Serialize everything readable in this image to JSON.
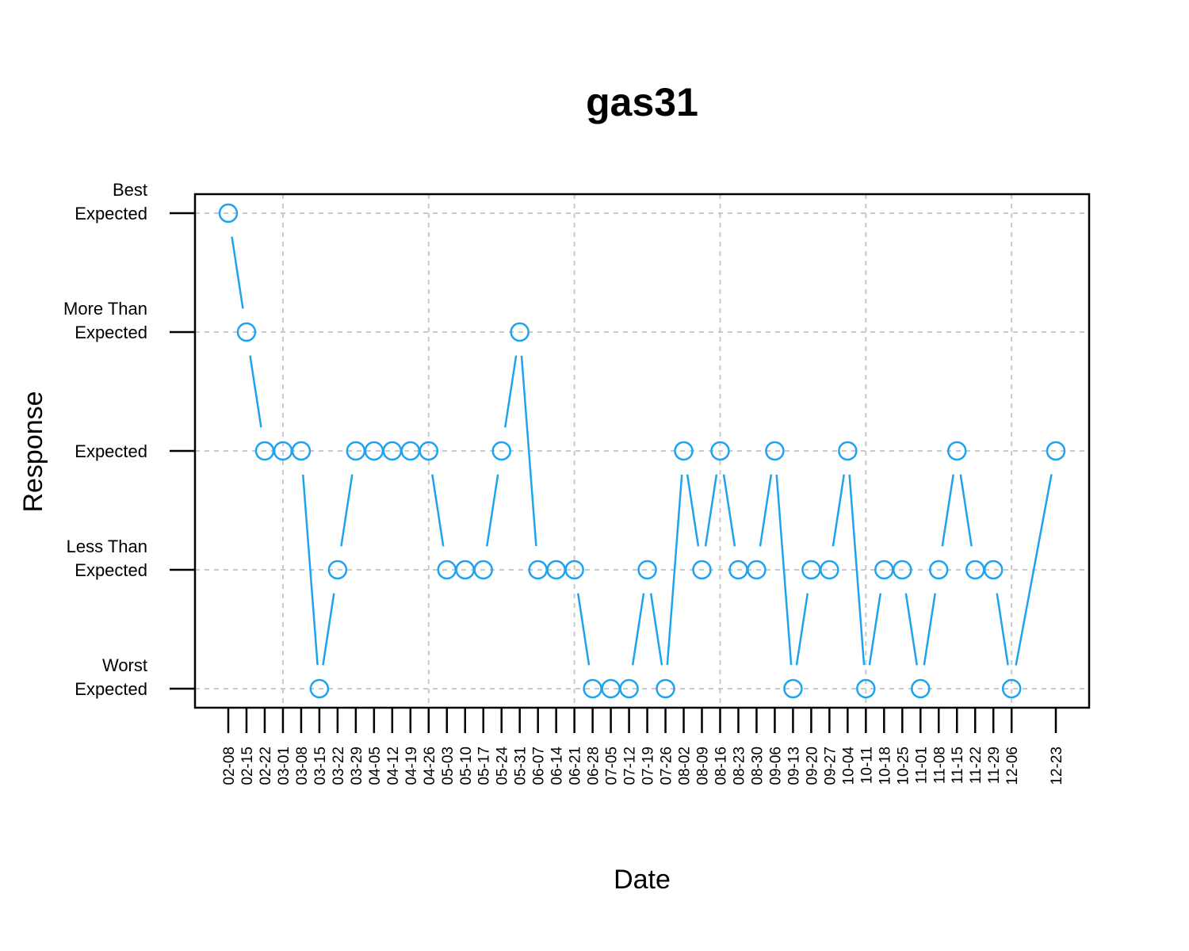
{
  "chart_data": {
    "type": "line",
    "title": "gas31",
    "xlabel": "Date",
    "ylabel": "Response",
    "y_levels": [
      [
        "Worst",
        "Expected"
      ],
      [
        "Less Than",
        "Expected"
      ],
      [
        "Expected"
      ],
      [
        "More Than",
        "Expected"
      ],
      [
        "Best",
        "Expected"
      ]
    ],
    "ylim": [
      0.84,
      5.16
    ],
    "grid": true,
    "markers": "open-circle",
    "colors": {
      "series": "#1fa3ee",
      "grid": "#c8c8c8",
      "axis": "#000000"
    },
    "x": [
      "2018-02-08",
      "2018-02-15",
      "2018-02-22",
      "2018-03-01",
      "2018-03-08",
      "2018-03-15",
      "2018-03-22",
      "2018-03-29",
      "2018-04-05",
      "2018-04-12",
      "2018-04-19",
      "2018-04-26",
      "2018-05-03",
      "2018-05-10",
      "2018-05-17",
      "2018-05-24",
      "2018-05-31",
      "2018-06-07",
      "2018-06-14",
      "2018-06-21",
      "2018-06-28",
      "2018-07-05",
      "2018-07-12",
      "2018-07-19",
      "2018-07-26",
      "2018-08-02",
      "2018-08-09",
      "2018-08-16",
      "2018-08-23",
      "2018-08-30",
      "2018-09-06",
      "2018-09-13",
      "2018-09-20",
      "2018-09-27",
      "2018-10-04",
      "2018-10-11",
      "2018-10-18",
      "2018-10-25",
      "2018-11-01",
      "2018-11-08",
      "2018-11-15",
      "2018-11-22",
      "2018-11-29",
      "2018-12-06",
      "2018-12-23"
    ],
    "tick_labels": [
      "02-08",
      "02-15",
      "02-22",
      "03-01",
      "03-08",
      "03-15",
      "03-22",
      "03-29",
      "04-05",
      "04-12",
      "04-19",
      "04-26",
      "05-03",
      "05-10",
      "05-17",
      "05-24",
      "05-31",
      "06-07",
      "06-14",
      "06-21",
      "06-28",
      "07-05",
      "07-12",
      "07-19",
      "07-26",
      "08-02",
      "08-09",
      "08-16",
      "08-23",
      "08-30",
      "09-06",
      "09-13",
      "09-20",
      "09-27",
      "10-04",
      "10-11",
      "10-18",
      "10-25",
      "11-01",
      "11-08",
      "11-15",
      "11-22",
      "11-29",
      "12-06",
      "12-23"
    ],
    "series": [
      {
        "values": [
          5,
          4,
          3,
          3,
          3,
          1,
          2,
          3,
          3,
          3,
          3,
          3,
          2,
          2,
          2,
          3,
          4,
          2,
          2,
          2,
          1,
          1,
          1,
          2,
          1,
          3,
          2,
          3,
          2,
          2,
          3,
          1,
          2,
          2,
          3,
          1,
          2,
          2,
          1,
          2,
          3,
          2,
          2,
          1,
          3
        ]
      }
    ],
    "vgrid_dates": [
      "2018-03-01",
      "2018-04-26",
      "2018-06-21",
      "2018-08-16",
      "2018-10-11",
      "2018-12-06"
    ]
  }
}
